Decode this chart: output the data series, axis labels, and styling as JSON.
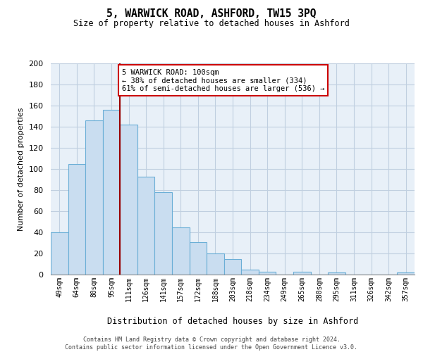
{
  "title": "5, WARWICK ROAD, ASHFORD, TW15 3PQ",
  "subtitle": "Size of property relative to detached houses in Ashford",
  "xlabel": "Distribution of detached houses by size in Ashford",
  "ylabel": "Number of detached properties",
  "bar_labels": [
    "49sqm",
    "64sqm",
    "80sqm",
    "95sqm",
    "111sqm",
    "126sqm",
    "141sqm",
    "157sqm",
    "172sqm",
    "188sqm",
    "203sqm",
    "218sqm",
    "234sqm",
    "249sqm",
    "265sqm",
    "280sqm",
    "295sqm",
    "311sqm",
    "326sqm",
    "342sqm",
    "357sqm"
  ],
  "bar_values": [
    40,
    105,
    146,
    156,
    142,
    93,
    78,
    45,
    31,
    20,
    15,
    5,
    3,
    0,
    3,
    0,
    2,
    0,
    0,
    0,
    2
  ],
  "bar_color": "#c9ddf0",
  "bar_edge_color": "#6aaed6",
  "highlight_line_color": "#990000",
  "annotation_line1": "5 WARWICK ROAD: 100sqm",
  "annotation_line2": "← 38% of detached houses are smaller (334)",
  "annotation_line3": "61% of semi-detached houses are larger (536) →",
  "annotation_box_color": "white",
  "annotation_box_edge": "#cc0000",
  "ylim": [
    0,
    200
  ],
  "yticks": [
    0,
    20,
    40,
    60,
    80,
    100,
    120,
    140,
    160,
    180,
    200
  ],
  "footer_line1": "Contains HM Land Registry data © Crown copyright and database right 2024.",
  "footer_line2": "Contains public sector information licensed under the Open Government Licence v3.0.",
  "background_color": "#ffffff",
  "plot_bg_color": "#e8f0f8",
  "grid_color": "#c0cfe0"
}
